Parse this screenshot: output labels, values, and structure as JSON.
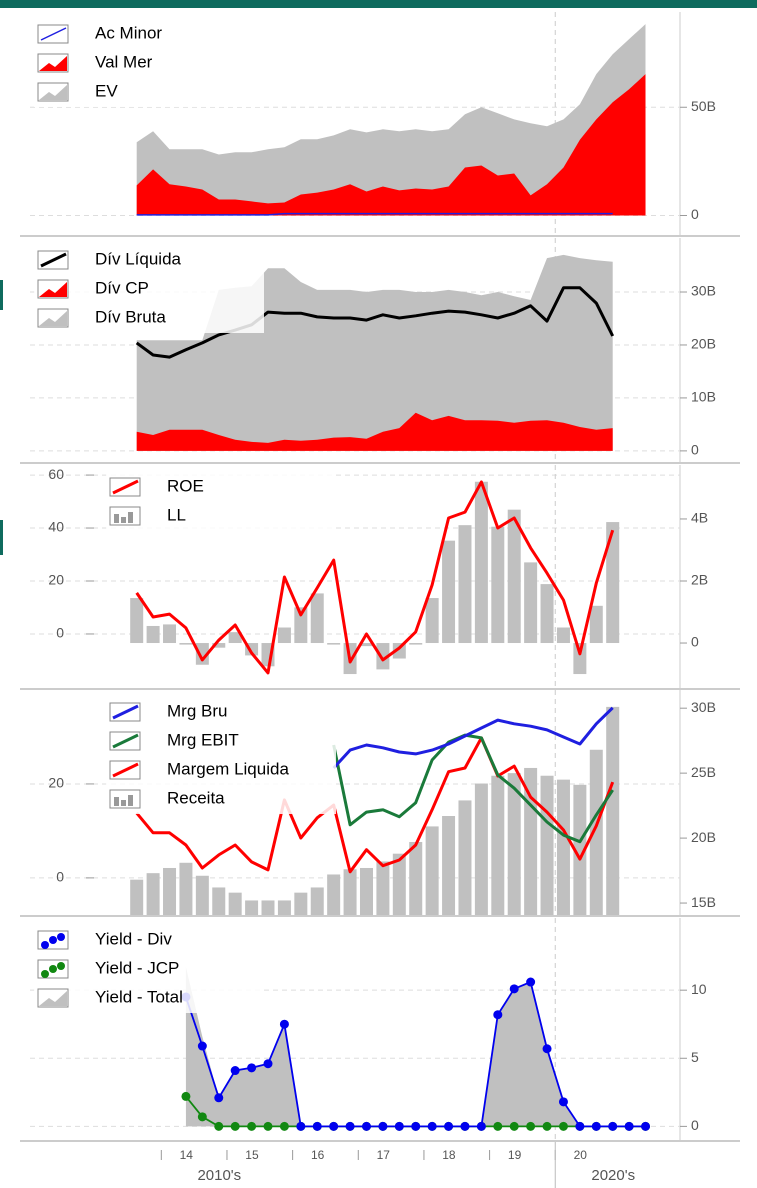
{
  "chart_data": [
    {
      "type": "line",
      "y_axis_side": "right",
      "grid": true,
      "legend": "upper left",
      "x": [
        2013.625,
        2013.875,
        2014.125,
        2014.375,
        2014.625,
        2014.875,
        2015.125,
        2015.375,
        2015.625,
        2015.875,
        2016.125,
        2016.375,
        2016.625,
        2016.875,
        2017.125,
        2017.375,
        2017.625,
        2017.875,
        2018.125,
        2018.375,
        2018.625,
        2018.875,
        2019.125,
        2019.375,
        2019.625,
        2019.875,
        2020.125,
        2020.375,
        2020.625,
        2020.875,
        2021.125,
        2021.375
      ],
      "xlim": [
        2012,
        2021.9
      ],
      "ylim": [
        -9,
        94
      ],
      "yticks": [
        0,
        {
          "value": 50,
          "label": "50B"
        }
      ],
      "series": [
        {
          "name": "Ac Minor",
          "kind": "line",
          "width": 1.5,
          "color": "#1f1fe0",
          "values": [
            0.3,
            0.3,
            0.3,
            0.3,
            0.3,
            0.3,
            0.3,
            0.3,
            0.3,
            0.9,
            0.9,
            0.9,
            0.9,
            0.9,
            0.9,
            0.9,
            0.9,
            0.9,
            0.9,
            0.9,
            0.9,
            0.9,
            0.9,
            0.9,
            0.9,
            0.9,
            0.9,
            0.9,
            0.9,
            0.9,
            null,
            null
          ]
        },
        {
          "name": "Val Mer",
          "kind": "area",
          "color": "#ff0000",
          "values": [
            13.9,
            21.3,
            14.4,
            13.4,
            12.0,
            7.4,
            7.4,
            6.5,
            5.6,
            6.0,
            9.7,
            10.6,
            12.0,
            14.4,
            11.1,
            13.4,
            11.6,
            12.5,
            12.0,
            13.4,
            22.2,
            23.1,
            18.5,
            19.4,
            9.3,
            14.4,
            22.2,
            35.0,
            44.4,
            52.3,
            58.3,
            65.3
          ]
        },
        {
          "name": "EV",
          "kind": "area",
          "color": "#c0c0c0",
          "values": [
            33.8,
            38.9,
            30.6,
            30.6,
            30.6,
            28.2,
            29.2,
            29.2,
            30.6,
            31.5,
            35.2,
            35.2,
            37.0,
            39.8,
            38.4,
            39.8,
            38.9,
            39.8,
            38.9,
            39.8,
            46.8,
            50.0,
            47.2,
            44.4,
            42.6,
            41.2,
            44.4,
            51.4,
            65.3,
            74.5,
            81.5,
            88.4
          ]
        }
      ]
    },
    {
      "type": "line",
      "y_axis_side": "right",
      "grid": true,
      "legend": "upper left",
      "x": [
        2013.625,
        2013.875,
        2014.125,
        2014.375,
        2014.625,
        2014.875,
        2015.125,
        2015.375,
        2015.625,
        2015.875,
        2016.125,
        2016.375,
        2016.625,
        2016.875,
        2017.125,
        2017.375,
        2017.625,
        2017.875,
        2018.125,
        2018.375,
        2018.625,
        2018.875,
        2019.125,
        2019.375,
        2019.625,
        2019.875,
        2020.125,
        2020.375,
        2020.625,
        2020.875
      ],
      "xlim": [
        2012,
        2021.9
      ],
      "ylim": [
        -2.1,
        40.2
      ],
      "yticks": [
        0,
        {
          "value": 10,
          "label": "10B"
        },
        {
          "value": 20,
          "label": "20B"
        },
        {
          "value": 30,
          "label": "30B"
        }
      ],
      "series": [
        {
          "name": "Dív Líquida",
          "kind": "line",
          "width": 3,
          "color": "#000000",
          "values": [
            20.4,
            18.1,
            17.7,
            19.1,
            20.4,
            21.9,
            22.8,
            23.8,
            26.2,
            26.0,
            26.0,
            25.3,
            25.1,
            25.1,
            24.7,
            25.7,
            25.1,
            25.5,
            26.0,
            26.4,
            26.2,
            25.7,
            25.1,
            26.0,
            27.4,
            24.5,
            30.8,
            30.8,
            27.9,
            21.7
          ]
        },
        {
          "name": "Dív CP",
          "kind": "area",
          "color": "#ff0000",
          "values": [
            3.6,
            3.0,
            4.0,
            4.0,
            4.0,
            3.0,
            2.1,
            1.7,
            1.5,
            2.1,
            1.9,
            2.1,
            2.5,
            2.6,
            2.3,
            3.6,
            4.3,
            7.2,
            5.8,
            6.6,
            5.8,
            5.8,
            5.7,
            5.3,
            5.7,
            5.8,
            5.3,
            4.5,
            4.0,
            4.3
          ]
        },
        {
          "name": "Dív Bruta",
          "kind": "area",
          "color": "#c0c0c0",
          "values": [
            20.9,
            20.9,
            20.9,
            20.9,
            20.9,
            30.4,
            30.8,
            31.1,
            34.5,
            34.5,
            31.9,
            30.4,
            30.4,
            30.4,
            30.0,
            30.4,
            30.4,
            30.0,
            30.0,
            30.4,
            30.0,
            29.4,
            30.0,
            29.2,
            28.5,
            36.4,
            37.0,
            36.4,
            36.0,
            35.7
          ]
        }
      ]
    },
    {
      "type": "line",
      "y_axis_side": "left",
      "grid": true,
      "legend": "upper left",
      "x": [
        2013.625,
        2013.875,
        2014.125,
        2014.375,
        2014.625,
        2014.875,
        2015.125,
        2015.375,
        2015.625,
        2015.875,
        2016.125,
        2016.375,
        2016.625,
        2016.875,
        2017.125,
        2017.375,
        2017.625,
        2017.875,
        2018.125,
        2018.375,
        2018.625,
        2018.875,
        2019.125,
        2019.375,
        2019.625,
        2019.875,
        2020.125,
        2020.375,
        2020.625,
        2020.875
      ],
      "xlim": [
        2012,
        2021.9
      ],
      "ylim": [
        -20.4,
        63.8
      ],
      "yticks": [
        0,
        20,
        40,
        60
      ],
      "y2lim": [
        -1.45,
        5.74
      ],
      "y2ticks": [
        0,
        {
          "value": 2,
          "label": "2B"
        },
        {
          "value": 4,
          "label": "4B"
        }
      ],
      "series": [
        {
          "name": "ROE",
          "kind": "line",
          "width": 3,
          "color": "#ff0000",
          "values": [
            15.5,
            6.4,
            7.5,
            2.3,
            -9.8,
            -2.3,
            3.4,
            -7.2,
            -14.7,
            21.5,
            7.2,
            17.4,
            27.9,
            -10.6,
            0,
            -9.8,
            -5.3,
            0.8,
            18.5,
            43.8,
            46.0,
            57.4,
            40.0,
            43.8,
            32.5,
            23.0,
            12.8,
            -7.5,
            19.2,
            39.2
          ]
        },
        {
          "name": "LL",
          "kind": "bar",
          "axis": "y2",
          "color": "#c0c0c0",
          "values": [
            1.45,
            0.55,
            0.6,
            -0.05,
            -0.7,
            -0.15,
            0.35,
            -0.4,
            -0.75,
            0.5,
            1.15,
            1.6,
            -0.05,
            -1.0,
            -0.1,
            -0.85,
            -0.5,
            -0.05,
            1.45,
            3.3,
            3.8,
            5.2,
            3.75,
            4.3,
            2.6,
            1.9,
            0.5,
            -1.0,
            1.2,
            3.9
          ]
        }
      ]
    },
    {
      "type": "line",
      "y_axis_side": "left",
      "grid": true,
      "legend": "upper left",
      "x": [
        2013.625,
        2013.875,
        2014.125,
        2014.375,
        2014.625,
        2014.875,
        2015.125,
        2015.375,
        2015.625,
        2015.875,
        2016.125,
        2016.375,
        2016.625,
        2016.875,
        2017.125,
        2017.375,
        2017.625,
        2017.875,
        2018.125,
        2018.375,
        2018.625,
        2018.875,
        2019.125,
        2019.375,
        2019.625,
        2019.875,
        2020.125,
        2020.375,
        2020.625,
        2020.875
      ],
      "xlim": [
        2012,
        2021.9
      ],
      "ylim": [
        -7.9,
        40
      ],
      "yticks": [
        0,
        20
      ],
      "y2lim": [
        14.08,
        31.4
      ],
      "y2ticks": [
        {
          "value": 15,
          "label": "15B"
        },
        {
          "value": 20,
          "label": "20B"
        },
        {
          "value": 25,
          "label": "25B"
        },
        {
          "value": 30,
          "label": "30B"
        }
      ],
      "series": [
        {
          "name": "Mrg Bru",
          "kind": "line",
          "width": 3,
          "color": "#1f1fe0",
          "values": [
            null,
            null,
            null,
            null,
            null,
            null,
            null,
            null,
            null,
            null,
            null,
            null,
            23.4,
            27.2,
            28.3,
            27.7,
            26.8,
            26.4,
            27.2,
            28.5,
            30.2,
            31.9,
            33.6,
            32.8,
            32.3,
            31.5,
            30.0,
            28.5,
            32.8,
            36.2
          ]
        },
        {
          "name": "Mrg EBIT",
          "kind": "line",
          "width": 3,
          "color": "#1a7a3a",
          "values": [
            null,
            null,
            null,
            null,
            null,
            null,
            null,
            null,
            null,
            null,
            null,
            null,
            28.3,
            11.3,
            14.0,
            14.5,
            13.0,
            16.0,
            25.1,
            28.9,
            30.4,
            29.8,
            21.9,
            19.1,
            15.5,
            11.9,
            9.1,
            7.7,
            13.4,
            18.7
          ]
        },
        {
          "name": "Margem Liquida",
          "kind": "line",
          "width": 3,
          "color": "#ff0000",
          "values": [
            13.8,
            9.6,
            9.6,
            7.0,
            2.1,
            4.9,
            7.0,
            3.4,
            1.7,
            16.6,
            8.5,
            12.8,
            15.5,
            1.3,
            6.0,
            2.6,
            3.8,
            7.0,
            14.5,
            22.6,
            23.4,
            29.8,
            21.7,
            23.8,
            17.2,
            14.0,
            10.2,
            4.0,
            11.1,
            20.4
          ]
        },
        {
          "name": "Receita",
          "kind": "bar",
          "axis": "y2",
          "color": "#c0c0c0",
          "values": [
            16.8,
            17.3,
            17.7,
            18.1,
            17.1,
            16.2,
            15.8,
            15.2,
            15.2,
            15.2,
            15.8,
            16.2,
            17.2,
            17.6,
            17.7,
            18.2,
            18.8,
            19.7,
            20.9,
            21.7,
            22.9,
            24.2,
            24.8,
            25.0,
            25.4,
            24.8,
            24.5,
            24.1,
            26.8,
            30.1
          ]
        }
      ]
    },
    {
      "type": "line",
      "y_axis_side": "right",
      "grid": true,
      "legend": "upper left",
      "x": [
        2014.375,
        2014.625,
        2014.875,
        2015.125,
        2015.375,
        2015.625,
        2015.875,
        2016.125,
        2016.375,
        2016.625,
        2016.875,
        2017.125,
        2017.375,
        2017.625,
        2017.875,
        2018.125,
        2018.375,
        2018.625,
        2018.875,
        2019.125,
        2019.375,
        2019.625,
        2019.875,
        2020.125,
        2020.375,
        2020.625,
        2020.875,
        2021.125,
        2021.375
      ],
      "xlim": [
        2012,
        2021.9
      ],
      "ylim": [
        -1.0,
        15.3
      ],
      "yticks": [
        0,
        5,
        10
      ],
      "xticks": [
        {
          "value": 2014,
          "label": "14"
        },
        {
          "value": 2015,
          "label": "15"
        },
        {
          "value": 2016,
          "label": "16"
        },
        {
          "value": 2017,
          "label": "17"
        },
        {
          "value": 2018,
          "label": "18"
        },
        {
          "value": 2019,
          "label": "19"
        },
        {
          "value": 2020,
          "label": "20"
        }
      ],
      "decades": [
        {
          "value": 2010,
          "label": "2010's"
        },
        {
          "value": 2020,
          "label": "2020's"
        }
      ],
      "series": [
        {
          "name": "Yield - Div",
          "kind": "dots",
          "color": "#0000ee",
          "values": [
            9.5,
            5.9,
            2.1,
            4.1,
            4.3,
            4.6,
            7.5,
            0,
            0,
            0,
            0,
            0,
            0,
            0,
            0,
            0,
            0,
            0,
            0,
            8.2,
            10.1,
            10.6,
            5.7,
            1.8,
            0,
            0,
            0,
            0,
            0
          ]
        },
        {
          "name": "Yield - JCP",
          "kind": "dots",
          "color": "#118811",
          "values": [
            2.2,
            0.7,
            0,
            0,
            0,
            0,
            0,
            0,
            0,
            0,
            0,
            0,
            0,
            0,
            0,
            0,
            0,
            0,
            0,
            0,
            0,
            0,
            0,
            0,
            0,
            0,
            0,
            0,
            0
          ]
        },
        {
          "name": "Yield - Total",
          "kind": "area",
          "color": "#c0c0c0",
          "values": [
            11.7,
            6.6,
            2.1,
            4.1,
            4.3,
            4.6,
            7.5,
            0,
            0,
            0,
            0,
            0,
            0,
            0,
            0,
            0,
            0,
            0,
            0,
            8.2,
            10.1,
            10.6,
            5.7,
            1.8,
            0,
            0,
            0,
            0,
            0
          ]
        }
      ]
    }
  ]
}
